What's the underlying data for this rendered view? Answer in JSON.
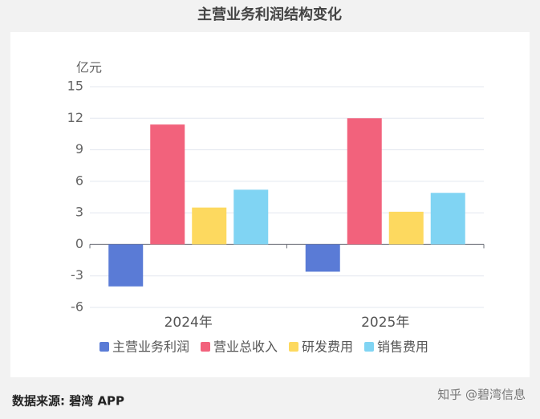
{
  "chart_data": {
    "type": "bar",
    "title": "主营业务利润结构变化",
    "y_unit": "亿元",
    "categories": [
      "2024年",
      "2025年"
    ],
    "series": [
      {
        "name": "主营业务利润",
        "color": "#5a7bd6",
        "values": [
          -4.0,
          -2.6
        ]
      },
      {
        "name": "营业总收入",
        "color": "#f2627c",
        "values": [
          11.4,
          12.0
        ]
      },
      {
        "name": "研发费用",
        "color": "#fdd95f",
        "values": [
          3.5,
          3.1
        ]
      },
      {
        "name": "销售费用",
        "color": "#80d4f3",
        "values": [
          5.2,
          4.9
        ]
      }
    ],
    "ylim": [
      -6,
      15
    ],
    "yticks": [
      -6,
      -3,
      0,
      3,
      6,
      9,
      12,
      15
    ],
    "grid": true,
    "legend": "bottom"
  },
  "footer": {
    "source": "数据来源: 碧湾 APP",
    "credit": "知乎 @碧湾信息"
  }
}
